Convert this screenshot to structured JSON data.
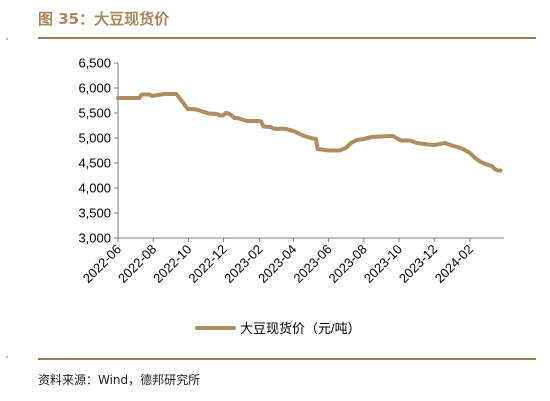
{
  "figure": {
    "title": "图 35：大豆现货价",
    "source": "资料来源：Wind，德邦研究所"
  },
  "colors": {
    "accent": "#A8865B",
    "line": "#B08D5E",
    "rule": "#9C7B51",
    "axis": "#7f7f7f",
    "text": "#000000"
  },
  "chart_data": {
    "type": "line",
    "title": "",
    "xlabel": "",
    "ylabel": "",
    "ylim": [
      3000,
      6500
    ],
    "yticks": [
      "6,500",
      "6,000",
      "5,500",
      "5,000",
      "4,500",
      "4,000",
      "3,500",
      "3,000"
    ],
    "ytick_values": [
      6500,
      6000,
      5500,
      5000,
      4500,
      4000,
      3500,
      3000
    ],
    "xticks": [
      "2022-06",
      "2022-08",
      "2022-10",
      "2022-12",
      "2023-02",
      "2023-04",
      "2023-06",
      "2023-08",
      "2023-10",
      "2023-12",
      "2024-02"
    ],
    "xlim": [
      "2022-06-01",
      "2024-03-31"
    ],
    "grid": false,
    "legend_position": "bottom-center",
    "series": [
      {
        "name": "大豆现货价（元/吨）",
        "x": [
          "2022-06-01",
          "2022-07-08",
          "2022-07-12",
          "2022-07-25",
          "2022-07-30",
          "2022-08-20",
          "2022-09-10",
          "2022-09-13",
          "2022-09-30",
          "2022-10-05",
          "2022-10-15",
          "2022-11-05",
          "2022-11-20",
          "2022-11-25",
          "2022-11-30",
          "2022-12-05",
          "2022-12-10",
          "2022-12-20",
          "2022-12-25",
          "2023-01-10",
          "2023-02-01",
          "2023-02-04",
          "2023-02-08",
          "2023-02-20",
          "2023-02-25",
          "2023-03-05",
          "2023-03-10",
          "2023-03-20",
          "2023-03-25",
          "2023-04-01",
          "2023-04-05",
          "2023-04-12",
          "2023-04-20",
          "2023-05-01",
          "2023-05-10",
          "2023-05-13",
          "2023-05-25",
          "2023-06-01",
          "2023-06-20",
          "2023-06-22",
          "2023-07-01",
          "2023-07-10",
          "2023-07-20",
          "2023-08-01",
          "2023-08-15",
          "2023-09-15",
          "2023-09-20",
          "2023-10-05",
          "2023-10-20",
          "2023-11-01",
          "2023-11-20",
          "2023-12-01",
          "2023-12-10",
          "2023-12-20",
          "2024-01-01",
          "2024-01-10",
          "2024-01-20",
          "2024-02-01",
          "2024-02-10",
          "2024-02-20",
          "2024-03-01",
          "2024-03-10",
          "2024-03-15",
          "2024-03-20",
          "2024-03-25"
        ],
        "values": [
          5800,
          5800,
          5870,
          5870,
          5840,
          5880,
          5880,
          5840,
          5580,
          5580,
          5570,
          5490,
          5480,
          5450,
          5450,
          5500,
          5490,
          5400,
          5400,
          5340,
          5340,
          5330,
          5230,
          5220,
          5190,
          5180,
          5190,
          5180,
          5160,
          5140,
          5120,
          5080,
          5040,
          5000,
          4980,
          4780,
          4760,
          4750,
          4750,
          4760,
          4800,
          4900,
          4960,
          4980,
          5020,
          5040,
          5040,
          4950,
          4950,
          4900,
          4870,
          4860,
          4880,
          4900,
          4850,
          4820,
          4780,
          4700,
          4600,
          4520,
          4470,
          4440,
          4380,
          4350,
          4350
        ]
      }
    ]
  }
}
